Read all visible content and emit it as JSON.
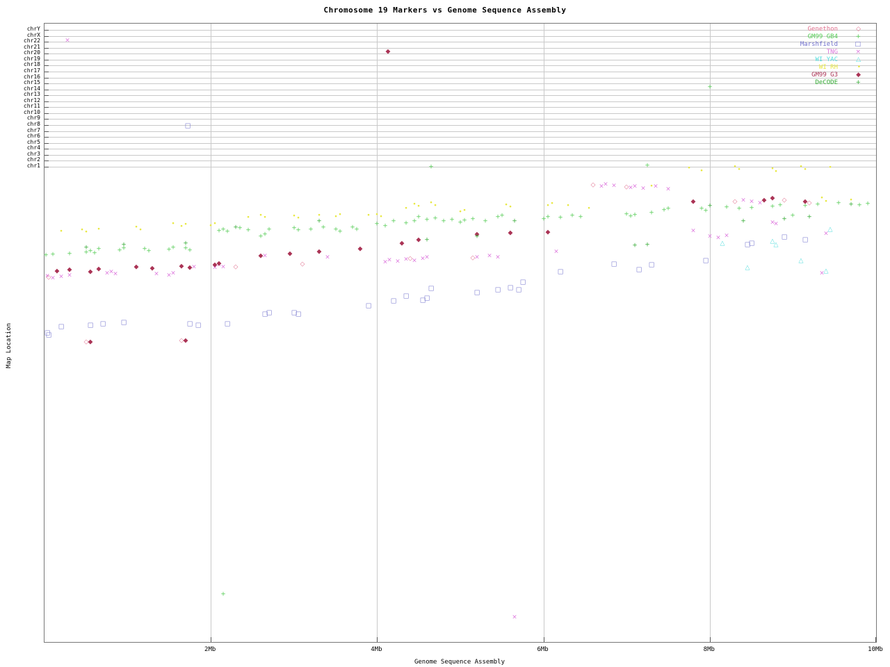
{
  "title": "Chromosome 19 Markers vs Genome Sequence Assembly",
  "axes": {
    "xlabel": "Genome Sequence Assembly",
    "ylabel": "Map Location",
    "x_ticks": [
      {
        "label": "2Mb",
        "mb": 2,
        "grid": true
      },
      {
        "label": "4Mb",
        "mb": 4,
        "grid": true
      },
      {
        "label": "6Mb",
        "mb": 6,
        "grid": true
      },
      {
        "label": "8Mb",
        "mb": 8,
        "grid": true
      },
      {
        "label": "10Mb",
        "mb": 10,
        "grid": false
      }
    ],
    "y_category_labels": [
      "chrY",
      "chrX",
      "chr22",
      "chr21",
      "chr20",
      "chr19",
      "chr18",
      "chr17",
      "chr16",
      "chr15",
      "chr14",
      "chr13",
      "chr12",
      "chr11",
      "chr10",
      "chr9",
      "chr8",
      "chr7",
      "chr6",
      "chr5",
      "chr4",
      "chr3",
      "chr2",
      "chr1"
    ]
  },
  "chart_data": {
    "type": "scatter",
    "title": "Chromosome 19 Markers vs Genome Sequence Assembly",
    "xlabel": "Genome Sequence Assembly",
    "ylabel": "Map Location",
    "x_units": "Mb",
    "x_range": [
      0,
      10
    ],
    "y_note": "y values are vertical plot positions (screen px). Band y=42..239 is the chromosome rows chrY..chr1 (categorical); region below is chr19 map location (unlabeled axis).",
    "legend_position": "top-right",
    "grid": true,
    "series": [
      {
        "name": "Genethon",
        "color": "#e0708e",
        "marker": "diamond-open",
        "points": [
          [
            0.05,
            399
          ],
          [
            0.5,
            492
          ],
          [
            1.65,
            490
          ],
          [
            2.3,
            384
          ],
          [
            3.1,
            380
          ],
          [
            4.4,
            372
          ],
          [
            5.15,
            371
          ],
          [
            6.6,
            266
          ],
          [
            7.0,
            269
          ],
          [
            8.3,
            290
          ],
          [
            8.9,
            288
          ],
          [
            9.2,
            292
          ]
        ]
      },
      {
        "name": "GM99 GB4",
        "color": "#55cc55",
        "marker": "plus",
        "points": [
          [
            0.02,
            367
          ],
          [
            0.1,
            366
          ],
          [
            0.3,
            365
          ],
          [
            0.5,
            363
          ],
          [
            0.55,
            361
          ],
          [
            0.6,
            364
          ],
          [
            0.65,
            358
          ],
          [
            0.9,
            360
          ],
          [
            0.95,
            357
          ],
          [
            1.2,
            358
          ],
          [
            1.25,
            361
          ],
          [
            1.5,
            359
          ],
          [
            1.55,
            356
          ],
          [
            1.7,
            357
          ],
          [
            1.75,
            360
          ],
          [
            2.1,
            332
          ],
          [
            2.15,
            330
          ],
          [
            2.2,
            333
          ],
          [
            2.35,
            328
          ],
          [
            2.45,
            331
          ],
          [
            2.6,
            340
          ],
          [
            2.65,
            337
          ],
          [
            2.7,
            330
          ],
          [
            3.0,
            328
          ],
          [
            3.05,
            331
          ],
          [
            3.2,
            330
          ],
          [
            3.35,
            327
          ],
          [
            3.5,
            330
          ],
          [
            3.55,
            333
          ],
          [
            3.7,
            327
          ],
          [
            3.75,
            330
          ],
          [
            4.0,
            322
          ],
          [
            4.1,
            325
          ],
          [
            4.2,
            318
          ],
          [
            4.35,
            321
          ],
          [
            4.45,
            318
          ],
          [
            4.5,
            312
          ],
          [
            4.6,
            316
          ],
          [
            4.7,
            314
          ],
          [
            4.8,
            318
          ],
          [
            4.9,
            316
          ],
          [
            5.0,
            320
          ],
          [
            5.05,
            317
          ],
          [
            5.15,
            315
          ],
          [
            5.3,
            318
          ],
          [
            5.45,
            312
          ],
          [
            5.5,
            310
          ],
          [
            6.0,
            315
          ],
          [
            6.05,
            312
          ],
          [
            6.2,
            313
          ],
          [
            6.35,
            310
          ],
          [
            6.45,
            312
          ],
          [
            7.0,
            308
          ],
          [
            7.05,
            311
          ],
          [
            7.1,
            309
          ],
          [
            7.3,
            306
          ],
          [
            7.45,
            302
          ],
          [
            7.5,
            300
          ],
          [
            7.9,
            300
          ],
          [
            7.95,
            303
          ],
          [
            8.2,
            298
          ],
          [
            8.35,
            300
          ],
          [
            8.5,
            299
          ],
          [
            8.75,
            297
          ],
          [
            8.85,
            295
          ],
          [
            9.0,
            310
          ],
          [
            9.15,
            296
          ],
          [
            9.3,
            294
          ],
          [
            9.55,
            292
          ],
          [
            9.8,
            295
          ],
          [
            9.9,
            293
          ],
          [
            4.65,
            240
          ],
          [
            7.25,
            238
          ],
          [
            2.15,
            855
          ],
          [
            8.0,
            125
          ]
        ]
      },
      {
        "name": "Marshfield",
        "color": "#7070cc",
        "marker": "square-open",
        "points": [
          [
            0.03,
            479
          ],
          [
            0.05,
            482
          ],
          [
            0.2,
            470
          ],
          [
            0.55,
            468
          ],
          [
            0.7,
            466
          ],
          [
            0.95,
            464
          ],
          [
            1.75,
            466
          ],
          [
            1.85,
            468
          ],
          [
            2.2,
            466
          ],
          [
            2.65,
            452
          ],
          [
            2.7,
            450
          ],
          [
            3.0,
            450
          ],
          [
            3.05,
            452
          ],
          [
            3.9,
            440
          ],
          [
            4.2,
            433
          ],
          [
            4.35,
            426
          ],
          [
            4.55,
            432
          ],
          [
            4.6,
            429
          ],
          [
            4.65,
            415
          ],
          [
            5.2,
            421
          ],
          [
            5.45,
            417
          ],
          [
            5.6,
            414
          ],
          [
            5.7,
            417
          ],
          [
            5.75,
            406
          ],
          [
            6.2,
            391
          ],
          [
            6.85,
            380
          ],
          [
            7.15,
            388
          ],
          [
            7.3,
            381
          ],
          [
            7.95,
            375
          ],
          [
            8.45,
            352
          ],
          [
            8.5,
            350
          ],
          [
            8.9,
            341
          ],
          [
            9.15,
            345
          ],
          [
            1.72,
            181
          ]
        ]
      },
      {
        "name": "TNG",
        "color": "#dd77dd",
        "marker": "x",
        "points": [
          [
            0.03,
            397
          ],
          [
            0.1,
            400
          ],
          [
            0.2,
            398
          ],
          [
            0.3,
            396
          ],
          [
            0.75,
            393
          ],
          [
            0.8,
            391
          ],
          [
            0.85,
            394
          ],
          [
            1.35,
            394
          ],
          [
            1.5,
            396
          ],
          [
            1.55,
            393
          ],
          [
            1.8,
            384
          ],
          [
            2.05,
            385
          ],
          [
            2.1,
            381
          ],
          [
            2.15,
            384
          ],
          [
            2.65,
            368
          ],
          [
            3.4,
            370
          ],
          [
            4.1,
            377
          ],
          [
            4.15,
            374
          ],
          [
            4.25,
            376
          ],
          [
            4.35,
            373
          ],
          [
            4.45,
            375
          ],
          [
            4.55,
            372
          ],
          [
            4.6,
            370
          ],
          [
            5.2,
            370
          ],
          [
            5.35,
            368
          ],
          [
            5.45,
            370
          ],
          [
            6.15,
            362
          ],
          [
            6.7,
            268
          ],
          [
            6.75,
            265
          ],
          [
            6.85,
            267
          ],
          [
            7.05,
            270
          ],
          [
            7.1,
            268
          ],
          [
            7.2,
            271
          ],
          [
            7.35,
            268
          ],
          [
            7.5,
            272
          ],
          [
            7.8,
            332
          ],
          [
            8.0,
            340
          ],
          [
            8.1,
            342
          ],
          [
            8.2,
            339
          ],
          [
            8.4,
            288
          ],
          [
            8.5,
            290
          ],
          [
            8.6,
            292
          ],
          [
            8.75,
            320
          ],
          [
            8.8,
            322
          ],
          [
            9.4,
            336
          ],
          [
            9.35,
            393
          ],
          [
            0.28,
            58
          ],
          [
            5.65,
            888
          ]
        ]
      },
      {
        "name": "WI YAC",
        "color": "#55dddd",
        "marker": "triangle-open",
        "points": [
          [
            8.15,
            350
          ],
          [
            8.45,
            385
          ],
          [
            8.75,
            347
          ],
          [
            8.8,
            352
          ],
          [
            9.1,
            375
          ],
          [
            9.45,
            330
          ],
          [
            9.4,
            390
          ]
        ]
      },
      {
        "name": "WI RH",
        "color": "#e8e840",
        "marker": "dot",
        "points": [
          [
            0.2,
            333
          ],
          [
            0.45,
            331
          ],
          [
            0.5,
            334
          ],
          [
            0.65,
            330
          ],
          [
            1.1,
            327
          ],
          [
            1.15,
            331
          ],
          [
            1.55,
            322
          ],
          [
            1.65,
            326
          ],
          [
            1.7,
            323
          ],
          [
            2.0,
            325
          ],
          [
            2.05,
            322
          ],
          [
            2.45,
            313
          ],
          [
            2.6,
            310
          ],
          [
            2.65,
            313
          ],
          [
            3.0,
            311
          ],
          [
            3.05,
            314
          ],
          [
            3.3,
            310
          ],
          [
            3.5,
            312
          ],
          [
            3.55,
            309
          ],
          [
            3.9,
            310
          ],
          [
            4.0,
            309
          ],
          [
            4.05,
            312
          ],
          [
            4.35,
            300
          ],
          [
            4.45,
            294
          ],
          [
            4.5,
            297
          ],
          [
            4.65,
            292
          ],
          [
            4.7,
            296
          ],
          [
            5.0,
            305
          ],
          [
            5.05,
            303
          ],
          [
            5.55,
            295
          ],
          [
            5.6,
            298
          ],
          [
            6.05,
            296
          ],
          [
            6.1,
            293
          ],
          [
            6.3,
            296
          ],
          [
            6.55,
            300
          ],
          [
            7.3,
            268
          ],
          [
            7.75,
            242
          ],
          [
            7.9,
            246
          ],
          [
            8.3,
            240
          ],
          [
            8.35,
            244
          ],
          [
            8.75,
            243
          ],
          [
            8.8,
            247
          ],
          [
            9.1,
            240
          ],
          [
            9.15,
            244
          ],
          [
            9.35,
            285
          ],
          [
            9.4,
            290
          ],
          [
            9.45,
            241
          ],
          [
            9.7,
            288
          ]
        ]
      },
      {
        "name": "GM99 G3",
        "color": "#aa3355",
        "marker": "diamond-filled",
        "points": [
          [
            0.15,
            390
          ],
          [
            0.3,
            388
          ],
          [
            0.55,
            391
          ],
          [
            0.65,
            387
          ],
          [
            1.1,
            384
          ],
          [
            1.3,
            386
          ],
          [
            1.65,
            383
          ],
          [
            1.75,
            385
          ],
          [
            2.05,
            381
          ],
          [
            2.1,
            379
          ],
          [
            2.6,
            368
          ],
          [
            2.95,
            365
          ],
          [
            3.3,
            362
          ],
          [
            3.8,
            358
          ],
          [
            4.3,
            350
          ],
          [
            4.5,
            345
          ],
          [
            5.2,
            337
          ],
          [
            5.6,
            335
          ],
          [
            6.05,
            334
          ],
          [
            7.8,
            290
          ],
          [
            8.65,
            288
          ],
          [
            8.75,
            285
          ],
          [
            9.15,
            290
          ],
          [
            0.55,
            492
          ],
          [
            1.7,
            490
          ],
          [
            4.13,
            74
          ]
        ]
      },
      {
        "name": "DeCODE",
        "color": "#33aa33",
        "marker": "plus",
        "points": [
          [
            0.5,
            356
          ],
          [
            0.95,
            352
          ],
          [
            1.7,
            350
          ],
          [
            2.3,
            327
          ],
          [
            3.3,
            318
          ],
          [
            4.6,
            345
          ],
          [
            5.2,
            340
          ],
          [
            5.65,
            318
          ],
          [
            7.1,
            353
          ],
          [
            7.25,
            352
          ],
          [
            8.0,
            296
          ],
          [
            8.4,
            318
          ],
          [
            8.9,
            315
          ],
          [
            9.2,
            312
          ],
          [
            9.7,
            294
          ]
        ]
      }
    ]
  }
}
